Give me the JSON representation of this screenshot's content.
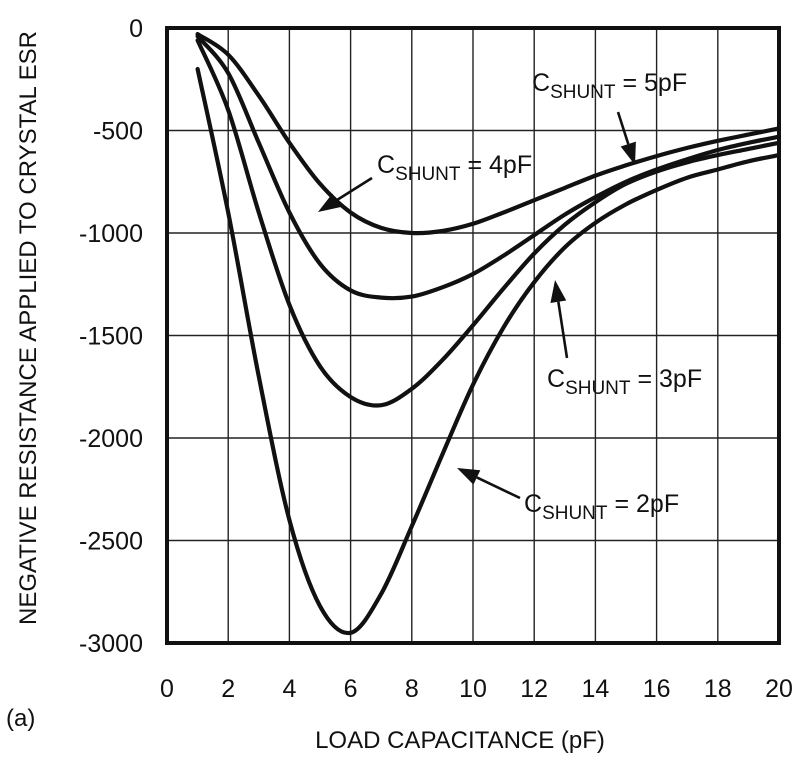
{
  "chart_data": {
    "type": "line",
    "panel_label": "(a)",
    "xlabel": "LOAD CAPACITANCE (pF)",
    "ylabel": "NEGATIVE RESISTANCE APPLIED TO CRYSTAL ESR",
    "xlim": [
      0,
      20
    ],
    "ylim": [
      -3000,
      0
    ],
    "xticks": [
      0,
      2,
      4,
      6,
      8,
      10,
      12,
      14,
      16,
      18,
      20
    ],
    "yticks": [
      0,
      -500,
      -1000,
      -1500,
      -2000,
      -2500,
      -3000
    ],
    "x_tick_labels": [
      "0",
      "2",
      "4",
      "6",
      "8",
      "10",
      "12",
      "14",
      "16",
      "18",
      "20"
    ],
    "y_tick_labels": [
      "0",
      "-500",
      "-1000",
      "-1500",
      "-2000",
      "-2500",
      "-3000"
    ],
    "grid": true,
    "series": [
      {
        "label_prefix": "C",
        "label_sub": "SHUNT",
        "label_suffix": " = 5pF",
        "x": [
          1,
          2,
          3,
          4,
          5,
          6,
          7,
          8,
          9,
          10,
          11,
          12,
          13,
          14,
          15,
          16,
          17,
          18,
          19,
          20
        ],
        "y": [
          -30,
          -130,
          -330,
          -560,
          -760,
          -900,
          -975,
          -1000,
          -990,
          -955,
          -900,
          -840,
          -780,
          -720,
          -670,
          -625,
          -585,
          -550,
          -520,
          -490
        ]
      },
      {
        "label_prefix": "C",
        "label_sub": "SHUNT",
        "label_suffix": " = 4pF",
        "x": [
          1,
          2,
          3,
          4,
          5,
          6,
          7,
          8,
          9,
          10,
          11,
          12,
          13,
          14,
          15,
          16,
          17,
          18,
          19,
          20
        ],
        "y": [
          -40,
          -220,
          -560,
          -900,
          -1150,
          -1280,
          -1315,
          -1310,
          -1265,
          -1200,
          -1110,
          -1010,
          -910,
          -825,
          -750,
          -690,
          -640,
          -595,
          -560,
          -530
        ]
      },
      {
        "label_prefix": "C",
        "label_sub": "SHUNT",
        "label_suffix": " = 3pF",
        "x": [
          1,
          2,
          3,
          4,
          5,
          6,
          7,
          8,
          9,
          10,
          11,
          12,
          13,
          14,
          15,
          16,
          17,
          18,
          19,
          20
        ],
        "y": [
          -60,
          -400,
          -900,
          -1350,
          -1650,
          -1800,
          -1840,
          -1760,
          -1620,
          -1450,
          -1270,
          -1100,
          -960,
          -850,
          -760,
          -700,
          -655,
          -620,
          -590,
          -560
        ]
      },
      {
        "label_prefix": "C",
        "label_sub": "SHUNT",
        "label_suffix": " = 2pF",
        "x": [
          1,
          2,
          3,
          4,
          5,
          6,
          7,
          8,
          9,
          10,
          11,
          12,
          13,
          14,
          15,
          16,
          17,
          18,
          19,
          20
        ],
        "y": [
          -200,
          -900,
          -1700,
          -2400,
          -2820,
          -2950,
          -2760,
          -2430,
          -2080,
          -1740,
          -1460,
          -1240,
          -1070,
          -950,
          -860,
          -790,
          -730,
          -690,
          -650,
          -620
        ]
      }
    ]
  }
}
